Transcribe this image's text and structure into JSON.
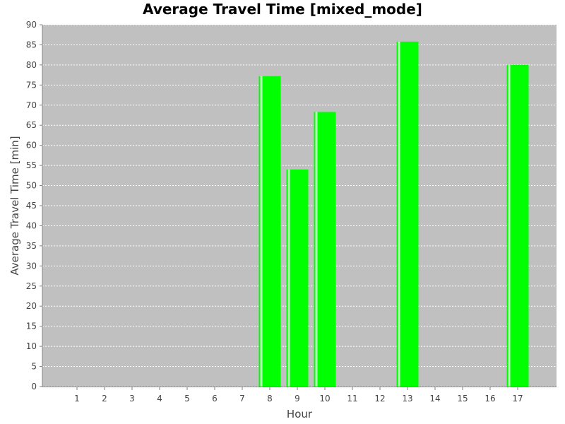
{
  "chart_data": {
    "type": "bar",
    "title": "Average Travel Time [mixed_mode]",
    "xlabel": "Hour",
    "ylabel": "Average Travel Time [min]",
    "categories": [
      "1",
      "2",
      "3",
      "4",
      "5",
      "6",
      "7",
      "8",
      "9",
      "10",
      "11",
      "12",
      "13",
      "14",
      "15",
      "16",
      "17"
    ],
    "values": [
      0,
      0,
      0,
      0,
      0,
      0,
      0,
      77.2,
      54.0,
      68.3,
      0,
      0,
      85.8,
      0,
      0,
      0,
      80.0
    ],
    "ylim": [
      0,
      90
    ],
    "yticks": [
      0,
      5,
      10,
      15,
      20,
      25,
      30,
      35,
      40,
      45,
      50,
      55,
      60,
      65,
      70,
      75,
      80,
      85,
      90
    ],
    "grid": true,
    "legend": "none",
    "colors": {
      "bar": "#00ff00",
      "bar_highlight": "#b8ffb8",
      "plot_background": "#c0c0c0",
      "grid": "#ffffff",
      "axis": "#808080"
    }
  }
}
